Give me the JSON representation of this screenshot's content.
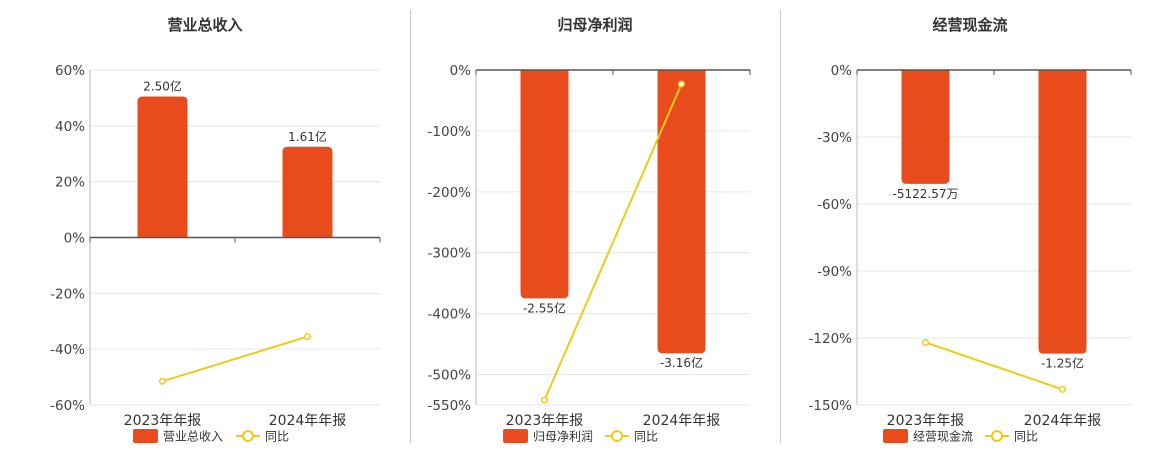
{
  "colors": {
    "bar": "#e84c1c",
    "line": "#f0c91a",
    "grid": "#e6e6e6",
    "axis": "#555555"
  },
  "legend_line_label": "同比",
  "chart_data": [
    {
      "type": "bar",
      "title": "营业总收入",
      "categories": [
        "2023年年报",
        "2024年年报"
      ],
      "series": [
        {
          "name": "营业总收入",
          "type": "bar",
          "values": [
            50.5,
            32.5
          ],
          "labels": [
            "2.50亿",
            "1.61亿"
          ]
        },
        {
          "name": "同比",
          "type": "line",
          "values": [
            -51.5,
            -35.5
          ]
        }
      ],
      "ylim": [
        -60,
        60
      ],
      "yticks": [
        60,
        40,
        20,
        0,
        -20,
        -40,
        -60
      ],
      "tick_labels": [
        "60%",
        "40%",
        "20%",
        "0%",
        "-20%",
        "-40%",
        "-60%"
      ]
    },
    {
      "type": "bar",
      "title": "归母净利润",
      "categories": [
        "2023年年报",
        "2024年年报"
      ],
      "series": [
        {
          "name": "归母净利润",
          "type": "bar",
          "values": [
            -375,
            -465
          ],
          "labels": [
            "-2.55亿",
            "-3.16亿"
          ]
        },
        {
          "name": "同比",
          "type": "line",
          "values": [
            -542,
            -23
          ]
        }
      ],
      "ylim": [
        -550,
        0
      ],
      "yticks": [
        0,
        -100,
        -200,
        -300,
        -400,
        -500,
        -550
      ],
      "tick_labels": [
        "0%",
        "-100%",
        "-200%",
        "-300%",
        "-400%",
        "-500%",
        "-550%"
      ]
    },
    {
      "type": "bar",
      "title": "经营现金流",
      "categories": [
        "2023年年报",
        "2024年年报"
      ],
      "series": [
        {
          "name": "经营现金流",
          "type": "bar",
          "values": [
            -51,
            -127
          ],
          "labels": [
            "-5122.57万",
            "-1.25亿"
          ]
        },
        {
          "name": "同比",
          "type": "line",
          "values": [
            -122,
            -143
          ]
        }
      ],
      "ylim": [
        -150,
        0
      ],
      "yticks": [
        0,
        -30,
        -60,
        -90,
        -120,
        -150
      ],
      "tick_labels": [
        "0%",
        "-30%",
        "-60%",
        "-90%",
        "-120%",
        "-150%"
      ]
    }
  ]
}
